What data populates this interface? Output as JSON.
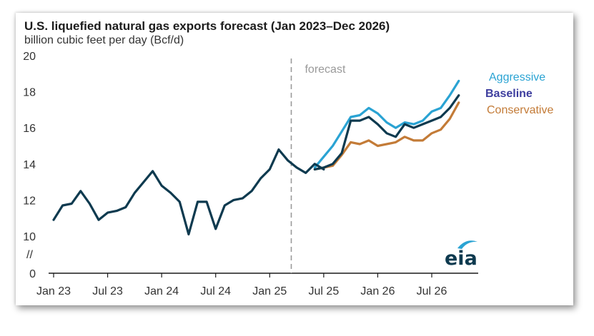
{
  "header": {
    "title": "U.S. liquefied natural gas exports forecast (Jan 2023–Dec 2026)",
    "subtitle": "billion cubic feet per day (Bcf/d)"
  },
  "annotations": {
    "forecast_label": "forecast",
    "axis_break": "//",
    "logo": "eia"
  },
  "colors": {
    "historical": "#0e3a4f",
    "aggressive": "#2aa3d3",
    "baseline": "#0e3a4f",
    "conservative": "#c37b37",
    "baseline_label": "#3d3d9e",
    "forecast_line": "#9a9a9a",
    "axis": "#1a1a1a"
  },
  "chart_data": {
    "type": "line",
    "title": "U.S. liquefied natural gas exports forecast (Jan 2023–Dec 2026)",
    "ylabel": "billion cubic feet per day (Bcf/d)",
    "xlabel": "",
    "ylim": [
      0,
      20
    ],
    "y_break_below": 10,
    "yticks": [
      0,
      10,
      12,
      14,
      16,
      18,
      20
    ],
    "xlim": [
      0,
      47
    ],
    "xticks": [
      {
        "label": "Jan 23",
        "x": 0
      },
      {
        "label": "Jul 23",
        "x": 6
      },
      {
        "label": "Jan 24",
        "x": 12
      },
      {
        "label": "Jul 24",
        "x": 18
      },
      {
        "label": "Jan 25",
        "x": 24
      },
      {
        "label": "Jul 25",
        "x": 30
      },
      {
        "label": "Jan 26",
        "x": 36
      },
      {
        "label": "Jul 26",
        "x": 42
      }
    ],
    "forecast_start": 26,
    "grid": false,
    "legend": "right-of-lines",
    "series": [
      {
        "name": "Aggressive",
        "start": 29,
        "values": [
          13.8,
          14.4,
          15.0,
          15.8,
          16.6,
          16.7,
          17.1,
          16.8,
          16.3,
          16.0,
          16.3,
          16.2,
          16.4,
          16.9,
          17.1,
          17.8,
          18.6
        ]
      },
      {
        "name": "Baseline",
        "start": 29,
        "values": [
          13.7,
          13.8,
          14.0,
          14.6,
          16.4,
          16.4,
          16.6,
          16.2,
          15.7,
          15.5,
          16.2,
          16.0,
          16.2,
          16.4,
          16.6,
          17.1,
          17.8
        ]
      },
      {
        "name": "Conservative",
        "start": 29,
        "values": [
          13.7,
          13.8,
          13.9,
          14.5,
          15.2,
          15.1,
          15.3,
          15.0,
          15.1,
          15.2,
          15.5,
          15.3,
          15.3,
          15.7,
          15.9,
          16.5,
          17.4
        ]
      },
      {
        "name": "",
        "start": 0,
        "values": [
          10.9,
          11.7,
          11.8,
          12.5,
          11.8,
          10.9,
          11.3,
          11.4,
          11.6,
          12.4,
          13.0,
          13.6,
          12.8,
          12.4,
          11.9,
          10.1,
          11.9,
          11.9,
          10.4,
          11.7,
          12.0,
          12.1,
          12.5,
          13.2,
          13.7,
          14.8,
          14.2,
          13.8,
          13.5,
          14.0,
          13.7
        ]
      }
    ]
  }
}
